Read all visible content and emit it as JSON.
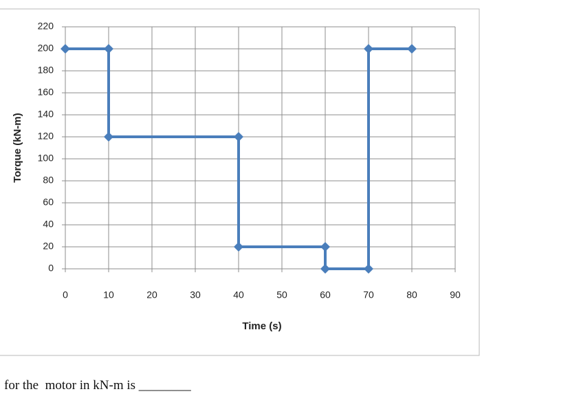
{
  "chart_data": {
    "type": "line",
    "y_label": "Torque (kN-m)",
    "x_label": "Time (s)",
    "x": [
      0,
      10,
      10,
      40,
      40,
      60,
      60,
      70,
      70,
      80
    ],
    "series": [
      {
        "color": "#4a7ebb",
        "values": [
          200,
          200,
          120,
          120,
          20,
          20,
          0,
          0,
          200,
          200
        ]
      }
    ],
    "xlim": [
      0,
      90
    ],
    "xticks": [
      0,
      10,
      20,
      30,
      40,
      50,
      60,
      70,
      80,
      90
    ],
    "ylim": [
      0,
      220
    ],
    "yticks": [
      0,
      20,
      40,
      60,
      80,
      100,
      120,
      140,
      160,
      180,
      200,
      220
    ],
    "grid": true
  },
  "question_text": "for the  motor in kN-m is ________"
}
